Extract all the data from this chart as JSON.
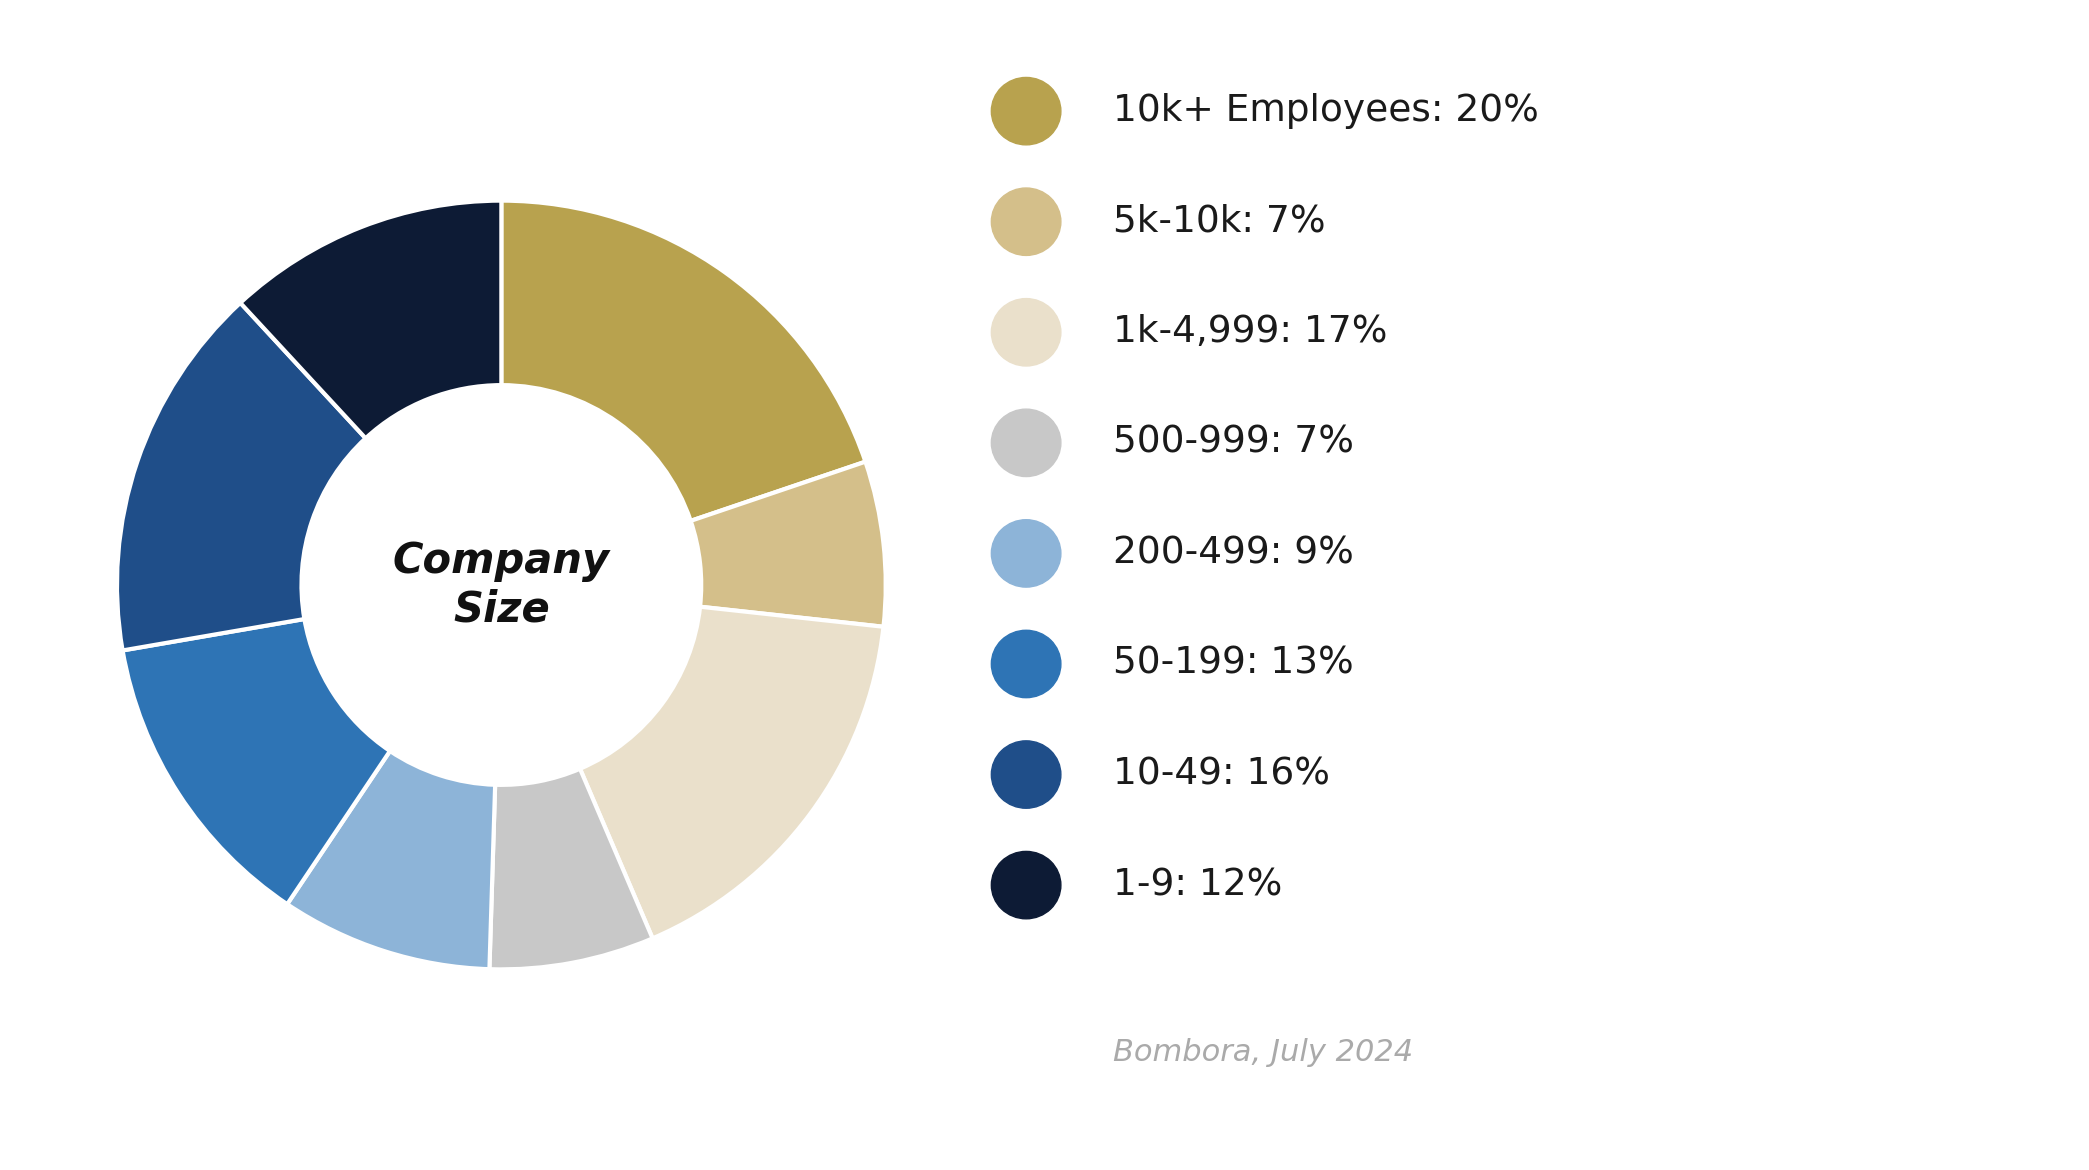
{
  "title": "Company Size",
  "categories": [
    "10k+ Employees: 20%",
    "5k-10k: 7%",
    "1k-4,999: 17%",
    "500-999: 7%",
    "200-499: 9%",
    "50-199: 13%",
    "10-49: 16%",
    "1-9: 12%"
  ],
  "values": [
    20,
    7,
    17,
    7,
    9,
    13,
    16,
    12
  ],
  "colors": [
    "#B8A24E",
    "#D4BF8A",
    "#EAE0CB",
    "#C8C8C8",
    "#8DB4D8",
    "#2E74B5",
    "#1F4E89",
    "#0D1B35"
  ],
  "source_text": "Bombora, July 2024",
  "background_color": "#FFFFFF"
}
